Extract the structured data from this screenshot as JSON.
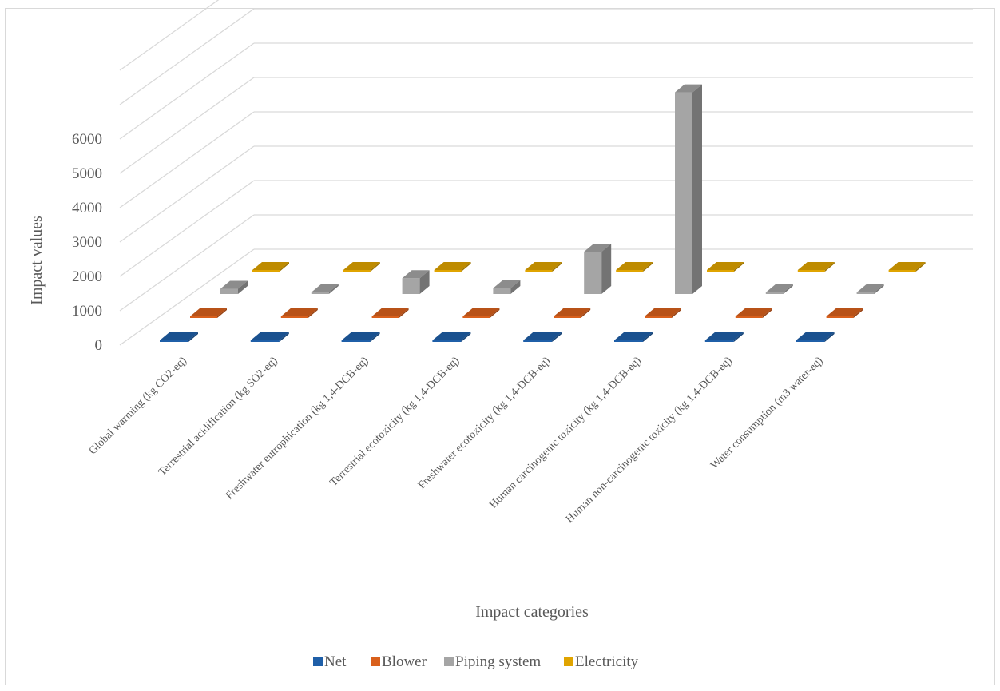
{
  "chart_data": {
    "type": "bar",
    "subtype": "3d-column",
    "title": "",
    "xlabel": "Impact categories",
    "ylabel": "Impact values",
    "ylim": [
      0,
      6000
    ],
    "yticks": [
      "0",
      "1000",
      "2000",
      "3000",
      "4000",
      "5000",
      "6000"
    ],
    "grid": true,
    "legend_position": "bottom",
    "categories": [
      "Global warming (kg CO2-eq)",
      "Terrestrial acidification (kg SO2-eq)",
      "Freshwater eutrophication (kg 1,4-DCB-eq)",
      "Terrestrial ecotoxicity (kg 1,4-DCB-eq)",
      "Freshwater ecotoxicity (kg 1,4-DCB-eq)",
      "Human carcinogenic toxicity (kg 1,4-DCB-eq)",
      "Human non-carcinogenic toxicity (kg 1,4-DCB-eq)",
      "Water consumption (m3 water-eq)"
    ],
    "series": [
      {
        "name": "Net",
        "color": "#1f5fa8",
        "values": [
          0,
          0,
          0,
          0,
          0,
          0,
          0,
          0
        ]
      },
      {
        "name": "Blower",
        "color": "#d9601c",
        "values": [
          0,
          0,
          0,
          0,
          0,
          0,
          0,
          0
        ]
      },
      {
        "name": "Piping system",
        "color": "#a5a5a5",
        "values": [
          150,
          50,
          460,
          170,
          1230,
          5870,
          0,
          0
        ]
      },
      {
        "name": "Electricity",
        "color": "#e0a400",
        "values": [
          0,
          0,
          0,
          0,
          0,
          0,
          0,
          0
        ]
      }
    ]
  }
}
